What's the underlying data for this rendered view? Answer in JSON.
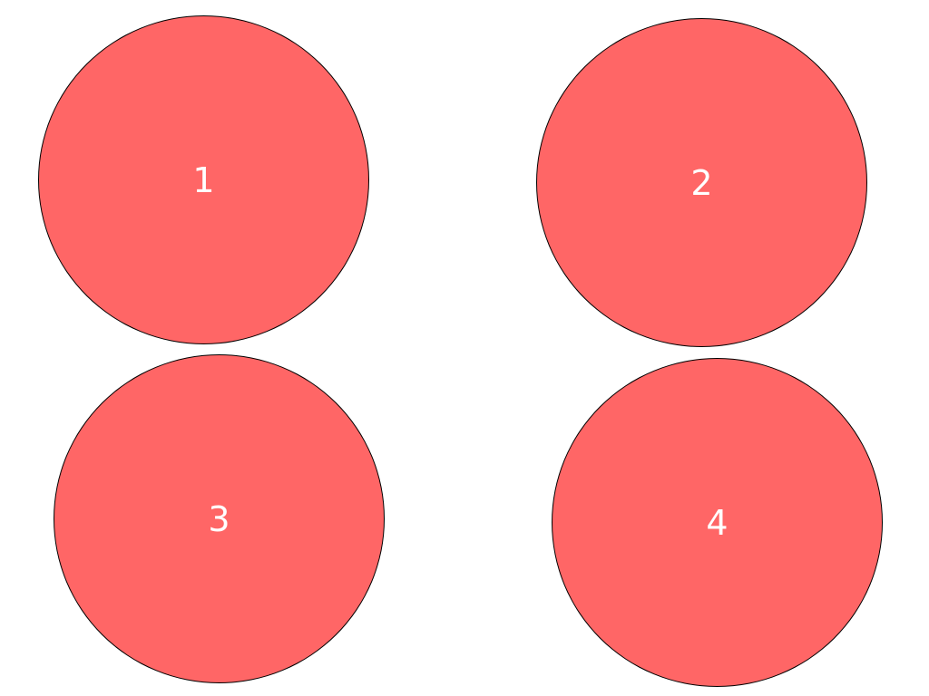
{
  "colors": {
    "background": "#ffffff",
    "target_fill": "#ff6666",
    "target_border": "#000000",
    "label_color": "#ffffff"
  },
  "targets": [
    {
      "label": "1"
    },
    {
      "label": "2"
    },
    {
      "label": "3"
    },
    {
      "label": "4"
    }
  ]
}
